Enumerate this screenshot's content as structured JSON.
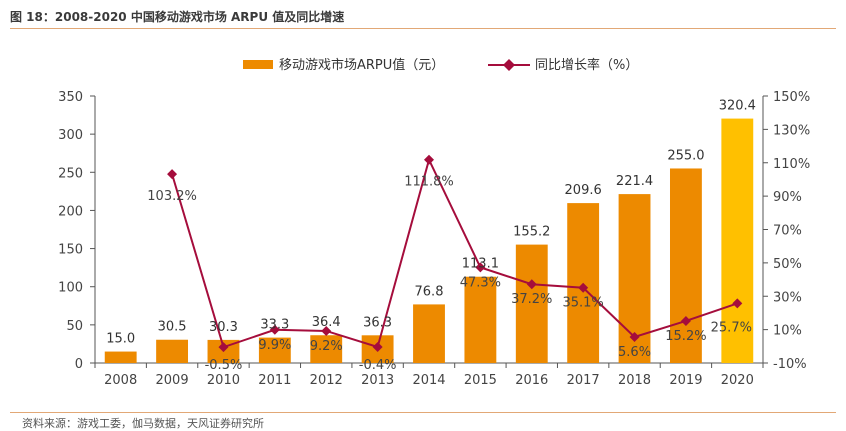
{
  "figure": {
    "title": "图 18：2008-2020 中国移动游戏市场 ARPU 值及同比增速",
    "source": "资料来源：游戏工委，伽马数据，天风证券研究所"
  },
  "colors": {
    "bar": "#ED8A00",
    "bar_highlight": "#FFC000",
    "line": "#A50D3C",
    "rule": "#E2A876",
    "axis": "#555555"
  },
  "chart_data": {
    "type": "bar",
    "title": "",
    "categories": [
      "2008",
      "2009",
      "2010",
      "2011",
      "2012",
      "2013",
      "2014",
      "2015",
      "2016",
      "2017",
      "2018",
      "2019",
      "2020"
    ],
    "series": [
      {
        "name": "移动游戏市场ARPU值（元）",
        "type": "bar",
        "axis": "left",
        "values": [
          15.0,
          30.5,
          30.3,
          33.3,
          36.4,
          36.3,
          76.8,
          113.1,
          155.2,
          209.6,
          221.4,
          255.0,
          320.4
        ],
        "labels": [
          "15.0",
          "30.5",
          "30.3",
          "33.3",
          "36.4",
          "36.3",
          "76.8",
          "113.1",
          "155.2",
          "209.6",
          "221.4",
          "255.0",
          "320.4"
        ],
        "highlight_last": true
      },
      {
        "name": "同比增长率（%）",
        "type": "line",
        "axis": "right",
        "marker": "diamond",
        "values": [
          null,
          103.2,
          -0.5,
          9.9,
          9.2,
          -0.4,
          111.8,
          47.3,
          37.2,
          35.1,
          5.6,
          15.2,
          25.7
        ],
        "labels": [
          null,
          "103.2%",
          "-0.5%",
          "9.9%",
          "9.2%",
          "-0.4%",
          "111.8%",
          "47.3%",
          "37.2%",
          "35.1%",
          "5.6%",
          "15.2%",
          "25.7%"
        ]
      }
    ],
    "y_left": {
      "min": 0,
      "max": 350,
      "ticks": [
        "0",
        "50",
        "100",
        "150",
        "200",
        "250",
        "300",
        "350"
      ]
    },
    "y_right": {
      "min": -10,
      "max": 150,
      "ticks": [
        "-10%",
        "10%",
        "30%",
        "50%",
        "70%",
        "90%",
        "110%",
        "130%",
        "150%"
      ]
    },
    "legend": "top-center",
    "grid": false
  }
}
